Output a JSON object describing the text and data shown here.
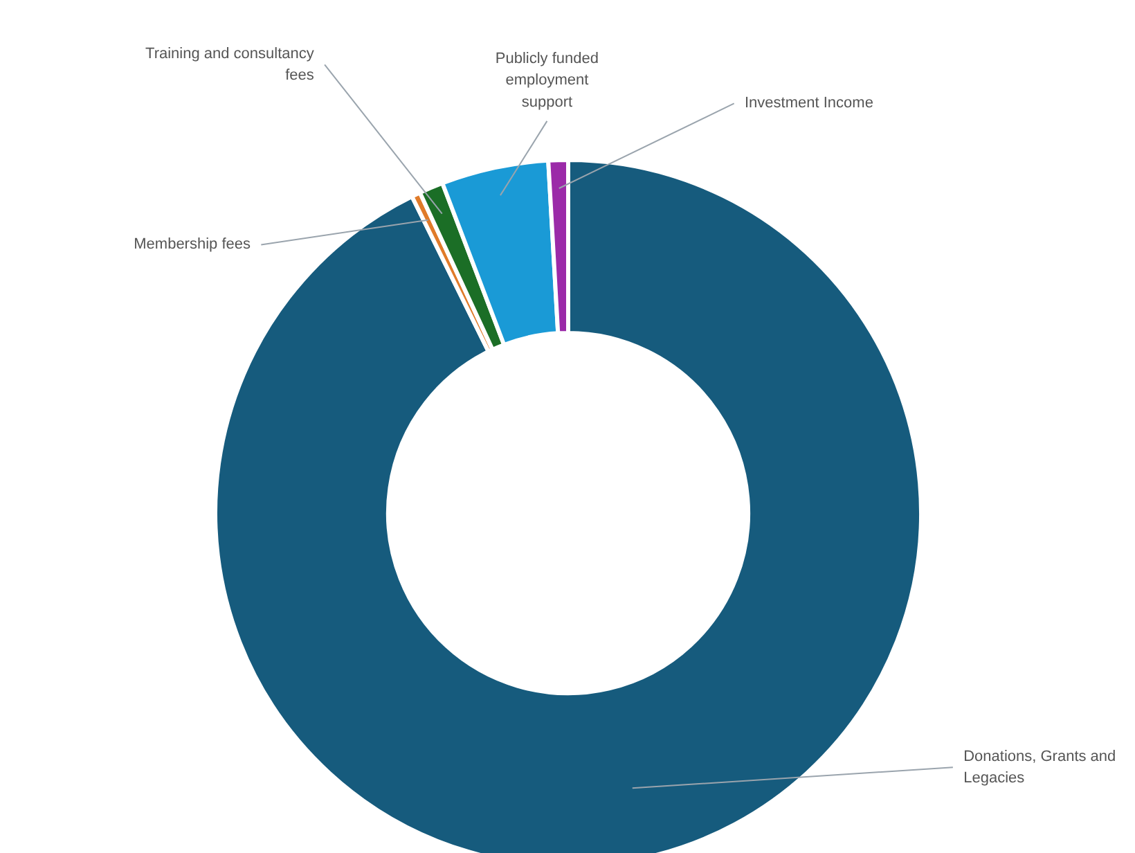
{
  "chart_data": {
    "type": "donut",
    "categories": [
      "Donations, Grants and Legacies",
      "Membership fees",
      "Training and consultancy fees",
      "Publicly funded employment support",
      "Investment Income"
    ],
    "values": [
      92.7,
      0.4,
      1.1,
      4.9,
      0.9
    ],
    "colors": [
      "#165b7d",
      "#e07b2a",
      "#1b6e26",
      "#1a9ad6",
      "#9b2aa8"
    ]
  }
}
